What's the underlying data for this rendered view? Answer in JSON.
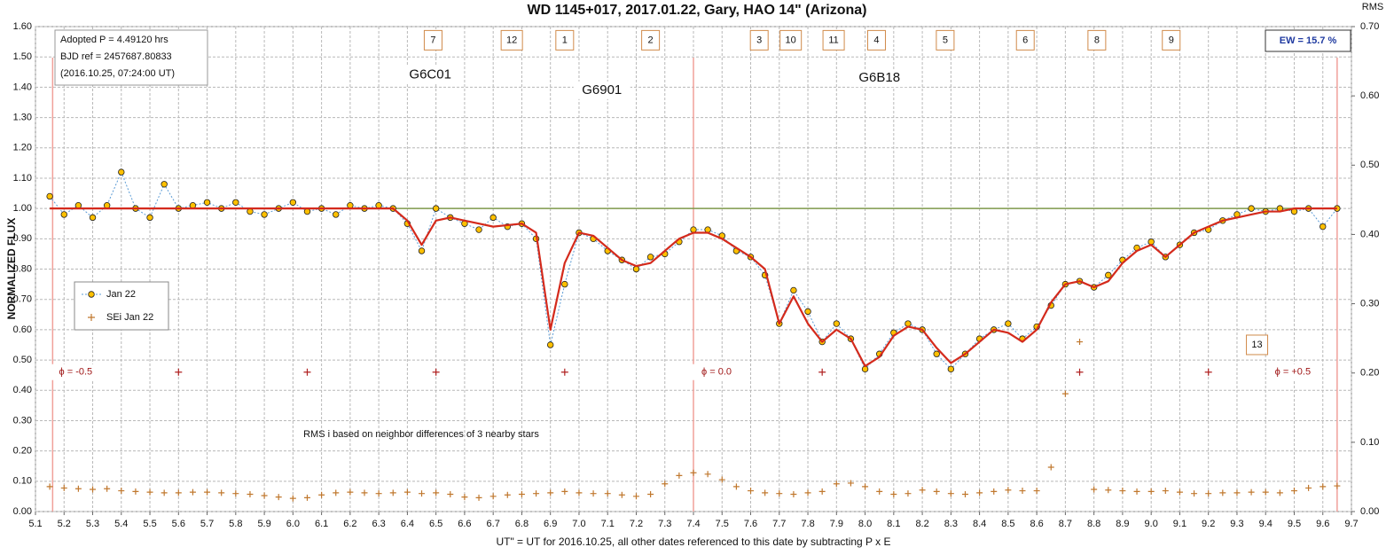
{
  "chart_data": {
    "type": "scatter",
    "title": "WD 1145+017, 2017.01.22, Gary, HAO 14\" (Arizona)",
    "ylabel": "NORMALIZED FLUX",
    "y2label": "RMS",
    "xlabel": "UT\" = UT for 2016.10.25, all other dates referenced to this date by subtracting P x E",
    "xlim": [
      5.1,
      9.7
    ],
    "ylim": [
      0,
      1.6
    ],
    "y2lim": [
      0,
      0.7
    ],
    "grid": true,
    "legend": "left",
    "xticks": [
      5.1,
      5.2,
      5.3,
      5.4,
      5.5,
      5.6,
      5.7,
      5.8,
      5.9,
      {
        "value": 6,
        "label": "6.0"
      },
      6.1,
      6.2,
      6.3,
      6.4,
      6.5,
      6.6,
      6.7,
      6.8,
      6.9,
      {
        "value": 7,
        "label": "7.0"
      },
      7.1,
      7.2,
      7.3,
      7.4,
      7.5,
      7.6,
      7.7,
      7.8,
      7.9,
      {
        "value": 8,
        "label": "8.0"
      },
      8.1,
      8.2,
      8.3,
      8.4,
      8.5,
      8.6,
      8.7,
      8.8,
      8.9,
      {
        "value": 9,
        "label": "9.0"
      },
      9.1,
      9.2,
      9.3,
      9.4,
      9.5,
      9.6,
      9.7
    ],
    "yticks": [
      {
        "value": 0,
        "label": "0.00"
      },
      {
        "value": 0.1,
        "label": "0.10"
      },
      {
        "value": 0.2,
        "label": "0.20"
      },
      {
        "value": 0.3,
        "label": "0.30"
      },
      {
        "value": 0.4,
        "label": "0.40"
      },
      {
        "value": 0.5,
        "label": "0.50"
      },
      {
        "value": 0.6,
        "label": "0.60"
      },
      {
        "value": 0.7,
        "label": "0.70"
      },
      {
        "value": 0.8,
        "label": "0.80"
      },
      {
        "value": 0.9,
        "label": "0.90"
      },
      {
        "value": 1,
        "label": "1.00"
      },
      {
        "value": 1.1,
        "label": "1.10"
      },
      {
        "value": 1.2,
        "label": "1.20"
      },
      {
        "value": 1.3,
        "label": "1.30"
      },
      {
        "value": 1.4,
        "label": "1.40"
      },
      {
        "value": 1.5,
        "label": "1.50"
      },
      {
        "value": 1.6,
        "label": "1.60"
      }
    ],
    "y2ticks": [
      {
        "value": 0,
        "label": "0.00"
      },
      {
        "value": 0.1,
        "label": "0.10"
      },
      {
        "value": 0.2,
        "label": "0.20"
      },
      {
        "value": 0.3,
        "label": "0.30"
      },
      {
        "value": 0.4,
        "label": "0.40"
      },
      {
        "value": 0.5,
        "label": "0.50"
      },
      {
        "value": 0.6,
        "label": "0.60"
      },
      {
        "value": 0.7,
        "label": "0.70"
      }
    ],
    "x": [
      5.15,
      5.2,
      5.25,
      5.3,
      5.35,
      5.4,
      5.45,
      5.5,
      5.55,
      5.6,
      5.65,
      5.7,
      5.75,
      5.8,
      5.85,
      5.9,
      5.95,
      6,
      6.05,
      6.1,
      6.15,
      6.2,
      6.25,
      6.3,
      6.35,
      6.4,
      6.45,
      6.5,
      6.55,
      6.6,
      6.65,
      6.7,
      6.75,
      6.8,
      6.85,
      6.9,
      6.95,
      7,
      7.05,
      7.1,
      7.15,
      7.2,
      7.25,
      7.3,
      7.35,
      7.4,
      7.45,
      7.5,
      7.55,
      7.6,
      7.65,
      7.7,
      7.75,
      7.8,
      7.85,
      7.9,
      7.95,
      8,
      8.05,
      8.1,
      8.15,
      8.2,
      8.25,
      8.3,
      8.35,
      8.4,
      8.45,
      8.5,
      8.55,
      8.6,
      8.65,
      8.7,
      8.75,
      8.8,
      8.85,
      8.9,
      8.95,
      9,
      9.05,
      9.1,
      9.15,
      9.2,
      9.25,
      9.3,
      9.35,
      9.4,
      9.45,
      9.5,
      9.55,
      9.6,
      9.65
    ],
    "series": [
      {
        "name": "Jan 22",
        "color": "#ffc000",
        "line_color": "#5b9bd5",
        "values": [
          1.04,
          0.98,
          1.01,
          0.97,
          1.01,
          1.12,
          1.0,
          0.97,
          1.08,
          1.0,
          1.01,
          1.02,
          1.0,
          1.02,
          0.99,
          0.98,
          1.0,
          1.02,
          0.99,
          1.0,
          0.98,
          1.01,
          1.0,
          1.01,
          1.0,
          0.95,
          0.86,
          1.0,
          0.97,
          0.95,
          0.93,
          0.97,
          0.94,
          0.95,
          0.9,
          0.55,
          0.75,
          0.92,
          0.9,
          0.86,
          0.83,
          0.8,
          0.84,
          0.85,
          0.89,
          0.93,
          0.93,
          0.91,
          0.86,
          0.84,
          0.78,
          0.62,
          0.73,
          0.66,
          0.56,
          0.62,
          0.57,
          0.47,
          0.52,
          0.59,
          0.62,
          0.6,
          0.52,
          0.47,
          0.52,
          0.57,
          0.6,
          0.62,
          0.57,
          0.61,
          0.68,
          0.75,
          0.76,
          0.74,
          0.78,
          0.83,
          0.87,
          0.89,
          0.84,
          0.88,
          0.92,
          0.93,
          0.96,
          0.98,
          1.0,
          0.99,
          1.0,
          0.99,
          1.0,
          0.94,
          1.0
        ]
      },
      {
        "name": "SEi Jan 22",
        "color": "#c0782e",
        "axis": "y2",
        "values": [
          0.036,
          0.034,
          0.033,
          0.032,
          0.033,
          0.03,
          0.029,
          0.028,
          0.027,
          0.027,
          0.028,
          0.028,
          0.027,
          0.026,
          0.025,
          0.023,
          0.021,
          0.019,
          0.02,
          0.024,
          0.027,
          0.028,
          0.027,
          0.026,
          0.027,
          0.028,
          0.026,
          0.027,
          0.025,
          0.021,
          0.02,
          0.022,
          0.024,
          0.025,
          0.026,
          0.027,
          0.029,
          0.027,
          0.026,
          0.026,
          0.024,
          0.022,
          0.025,
          0.04,
          0.052,
          0.056,
          0.054,
          0.046,
          0.036,
          0.03,
          0.027,
          0.026,
          0.025,
          0.027,
          0.029,
          0.04,
          0.041,
          0.036,
          0.029,
          0.025,
          0.026,
          0.031,
          0.029,
          0.026,
          0.025,
          0.027,
          0.029,
          0.031,
          0.03,
          0.03,
          0.064,
          0.17,
          0.245,
          0.032,
          0.031,
          0.03,
          0.029,
          0.029,
          0.03,
          0.028,
          0.026,
          0.026,
          0.027,
          0.027,
          0.028,
          0.028,
          0.027,
          0.03,
          0.034,
          0.036,
          0.037
        ]
      }
    ],
    "fit": {
      "color": "#d42a1c",
      "values": [
        1,
        1,
        1,
        1,
        1,
        1,
        1,
        1,
        1,
        1,
        1,
        1,
        1,
        1,
        1,
        1,
        1,
        1,
        1,
        1,
        1,
        1,
        1,
        1,
        1,
        0.96,
        0.88,
        0.96,
        0.97,
        0.96,
        0.95,
        0.94,
        0.945,
        0.95,
        0.92,
        0.6,
        0.82,
        0.92,
        0.91,
        0.87,
        0.83,
        0.81,
        0.82,
        0.86,
        0.9,
        0.92,
        0.92,
        0.9,
        0.87,
        0.84,
        0.8,
        0.62,
        0.71,
        0.62,
        0.56,
        0.6,
        0.57,
        0.48,
        0.51,
        0.58,
        0.61,
        0.6,
        0.54,
        0.49,
        0.52,
        0.56,
        0.6,
        0.59,
        0.56,
        0.6,
        0.69,
        0.75,
        0.76,
        0.74,
        0.76,
        0.82,
        0.86,
        0.88,
        0.84,
        0.88,
        0.92,
        0.94,
        0.96,
        0.97,
        0.98,
        0.99,
        0.99,
        1,
        1,
        1,
        1
      ]
    },
    "baseline": {
      "value": 1,
      "color": "#7f9a4c"
    },
    "phase_lines": [
      {
        "x": 5.16,
        "label": "ϕ = -0.5"
      },
      {
        "x": 7.4,
        "label": "ϕ = 0.0"
      },
      {
        "x": 9.65,
        "label": "ϕ = +0.5"
      }
    ],
    "phase_ticks": {
      "x": [
        5.6,
        6.05,
        6.5,
        6.95,
        7.85,
        8.75,
        9.2
      ],
      "y": 0.46
    },
    "dips": [
      {
        "label": "7",
        "x": 6.49,
        "y": 1.555
      },
      {
        "label": "12",
        "x": 6.765,
        "y": 1.555
      },
      {
        "label": "1",
        "x": 6.95,
        "y": 1.555
      },
      {
        "label": "2",
        "x": 7.25,
        "y": 1.555
      },
      {
        "label": "3",
        "x": 7.63,
        "y": 1.555
      },
      {
        "label": "10",
        "x": 7.74,
        "y": 1.555
      },
      {
        "label": "11",
        "x": 7.89,
        "y": 1.555
      },
      {
        "label": "4",
        "x": 8.04,
        "y": 1.555
      },
      {
        "label": "5",
        "x": 8.28,
        "y": 1.555
      },
      {
        "label": "6",
        "x": 8.56,
        "y": 1.555
      },
      {
        "label": "8",
        "x": 8.81,
        "y": 1.555
      },
      {
        "label": "9",
        "x": 9.07,
        "y": 1.555
      },
      {
        "label": "13",
        "x": 9.37,
        "y": 0.55
      }
    ],
    "groups": [
      {
        "label": "G6C01",
        "x": 6.48,
        "y": 1.44
      },
      {
        "label": "G6901",
        "x": 7.08,
        "y": 1.39
      },
      {
        "label": "G6B18",
        "x": 8.05,
        "y": 1.43
      }
    ],
    "info": [
      "Adopted P = 4.49120  hrs",
      "BJD ref = 2457687.80833",
      "(2016.10.25,  07:24:00  UT)"
    ],
    "ew_label": "EW = 15.7 %",
    "note": "RMS i based on neighbor differences of 3 nearby stars"
  }
}
